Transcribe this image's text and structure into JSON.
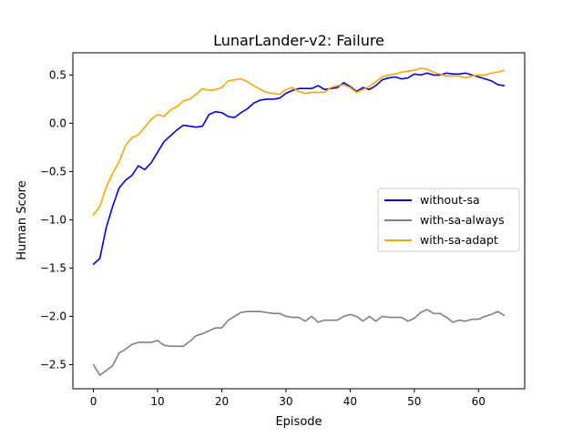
{
  "chart_data": {
    "type": "line",
    "title": "LunarLander-v2: Failure",
    "xlabel": "Episode",
    "ylabel": "Human Score",
    "xlim": [
      -3.2,
      67.2
    ],
    "ylim": [
      -2.75,
      0.73
    ],
    "xticks": [
      0,
      10,
      20,
      30,
      40,
      50,
      60
    ],
    "yticks": [
      -2.5,
      -2.0,
      -1.5,
      -1.0,
      -0.5,
      0.0,
      0.5
    ],
    "ytick_labels": [
      "−2.5",
      "−2.0",
      "−1.5",
      "−1.0",
      "−0.5",
      "0.0",
      "0.5"
    ],
    "grid": false,
    "legend_position": "center-right",
    "x": [
      0,
      1,
      2,
      3,
      4,
      5,
      6,
      7,
      8,
      9,
      10,
      11,
      12,
      13,
      14,
      15,
      16,
      17,
      18,
      19,
      20,
      21,
      22,
      23,
      24,
      25,
      26,
      27,
      28,
      29,
      30,
      31,
      32,
      33,
      34,
      35,
      36,
      37,
      38,
      39,
      40,
      41,
      42,
      43,
      44,
      45,
      46,
      47,
      48,
      49,
      50,
      51,
      52,
      53,
      54,
      55,
      56,
      57,
      58,
      59,
      60,
      61,
      62,
      63,
      64
    ],
    "series": [
      {
        "name": "without-sa",
        "color": "#0000ee",
        "values": [
          -1.46,
          -1.4,
          -1.08,
          -0.86,
          -0.67,
          -0.59,
          -0.54,
          -0.44,
          -0.48,
          -0.41,
          -0.3,
          -0.19,
          -0.13,
          -0.07,
          -0.02,
          -0.03,
          -0.04,
          -0.03,
          0.09,
          0.12,
          0.11,
          0.07,
          0.06,
          0.11,
          0.15,
          0.21,
          0.24,
          0.25,
          0.25,
          0.26,
          0.31,
          0.34,
          0.36,
          0.36,
          0.36,
          0.39,
          0.35,
          0.36,
          0.37,
          0.42,
          0.38,
          0.33,
          0.37,
          0.35,
          0.39,
          0.45,
          0.47,
          0.48,
          0.46,
          0.47,
          0.51,
          0.5,
          0.52,
          0.5,
          0.5,
          0.52,
          0.51,
          0.51,
          0.52,
          0.5,
          0.48,
          0.46,
          0.44,
          0.4,
          0.39
        ]
      },
      {
        "name": "with-sa-always",
        "color": "#808080",
        "values": [
          -2.5,
          -2.61,
          -2.56,
          -2.51,
          -2.38,
          -2.34,
          -2.29,
          -2.27,
          -2.27,
          -2.27,
          -2.25,
          -2.3,
          -2.31,
          -2.31,
          -2.31,
          -2.26,
          -2.2,
          -2.18,
          -2.15,
          -2.12,
          -2.12,
          -2.04,
          -2.0,
          -1.96,
          -1.95,
          -1.95,
          -1.95,
          -1.96,
          -1.97,
          -1.97,
          -2.0,
          -2.01,
          -2.01,
          -2.05,
          -2.0,
          -2.06,
          -2.04,
          -2.04,
          -2.04,
          -2.0,
          -1.98,
          -2.0,
          -2.05,
          -2.0,
          -2.05,
          -2.0,
          -2.01,
          -2.01,
          -2.01,
          -2.05,
          -2.02,
          -1.96,
          -1.93,
          -1.97,
          -1.97,
          -2.01,
          -2.06,
          -2.04,
          -2.05,
          -2.03,
          -2.03,
          -2.0,
          -1.98,
          -1.95,
          -1.99
        ]
      },
      {
        "name": "with-sa-adapt",
        "color": "#ffa500",
        "values": [
          -0.95,
          -0.86,
          -0.66,
          -0.52,
          -0.4,
          -0.23,
          -0.15,
          -0.12,
          -0.04,
          0.04,
          0.09,
          0.07,
          0.14,
          0.17,
          0.23,
          0.25,
          0.3,
          0.36,
          0.34,
          0.35,
          0.37,
          0.44,
          0.45,
          0.46,
          0.43,
          0.39,
          0.35,
          0.32,
          0.31,
          0.3,
          0.35,
          0.37,
          0.33,
          0.31,
          0.32,
          0.32,
          0.32,
          0.37,
          0.39,
          0.4,
          0.37,
          0.32,
          0.35,
          0.38,
          0.43,
          0.48,
          0.5,
          0.51,
          0.53,
          0.54,
          0.55,
          0.57,
          0.56,
          0.53,
          0.51,
          0.49,
          0.49,
          0.49,
          0.47,
          0.49,
          0.5,
          0.5,
          0.52,
          0.53,
          0.55
        ]
      }
    ]
  }
}
